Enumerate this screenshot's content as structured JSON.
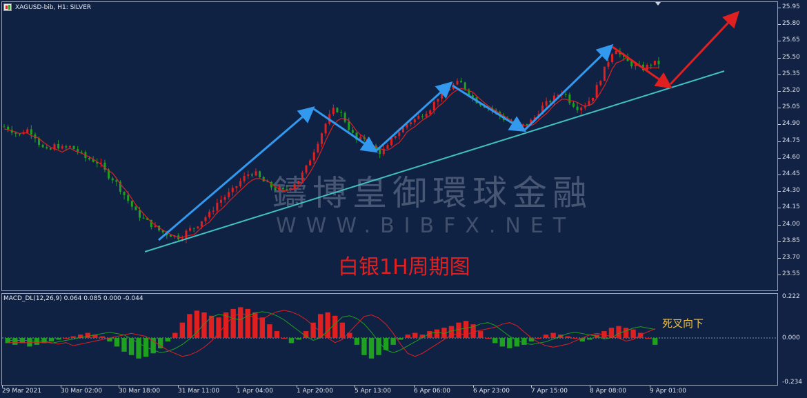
{
  "chart": {
    "symbol_line": "XAGUSD-bib, H1:  SILVER",
    "macd_line": "MACD_DL(12,26,9) 0.064 0.085 0.000 -0.044"
  },
  "price_axis": [
    "25.95",
    "25.80",
    "25.65",
    "25.50",
    "25.35",
    "25.20",
    "25.05",
    "24.90",
    "24.75",
    "24.60",
    "24.45",
    "24.30",
    "24.15",
    "24.00",
    "23.85",
    "23.70",
    "23.55"
  ],
  "macd_axis": {
    "top": "0.222",
    "zero": "0.000",
    "bottom": "-0.234"
  },
  "time_axis": [
    "29 Mar 2021",
    "30 Mar 02:00",
    "30 Mar 18:00",
    "31 Mar 11:00",
    "1 Apr 04:00",
    "1 Apr 20:00",
    "5 Apr 13:00",
    "6 Apr 06:00",
    "6 Apr 23:00",
    "7 Apr 15:00",
    "8 Apr 08:00",
    "9 Apr 01:00"
  ],
  "watermark": {
    "chinese": "鑄博皇御環球金融",
    "url": "WWW.BIBFX.NET"
  },
  "annotations": {
    "title": "白银1H周期图",
    "macd_note": "死叉向下"
  },
  "colors": {
    "background": "#112244",
    "bull": "#e02020",
    "bear": "#20a020",
    "trendline": "#40c0c0",
    "arrow_blue": "#3399ee",
    "arrow_red": "#e02020",
    "ma": "#e02020",
    "macd_signal": "#20a020",
    "macd_main": "#e02020"
  },
  "chart_data": {
    "type": "candlestick",
    "symbol": "XAGUSD",
    "timeframe": "H1",
    "ylim": [
      23.47,
      26.0
    ],
    "price_path": [
      24.88,
      24.85,
      24.8,
      24.86,
      24.82,
      24.7,
      24.65,
      24.72,
      24.68,
      24.7,
      24.66,
      24.6,
      24.58,
      24.55,
      24.45,
      24.4,
      24.3,
      24.2,
      24.1,
      24.05,
      24.0,
      23.95,
      23.92,
      23.9,
      23.88,
      23.95,
      23.98,
      24.05,
      24.1,
      24.2,
      24.25,
      24.3,
      24.38,
      24.45,
      24.47,
      24.4,
      24.35,
      24.32,
      24.3,
      24.35,
      24.4,
      24.5,
      24.65,
      24.8,
      24.95,
      25.05,
      24.98,
      24.85,
      24.75,
      24.78,
      24.7,
      24.65,
      24.68,
      24.8,
      24.85,
      24.92,
      24.95,
      25.0,
      25.05,
      25.15,
      25.2,
      25.25,
      25.28,
      25.2,
      25.12,
      25.08,
      25.05,
      25.0,
      24.95,
      24.92,
      24.88,
      24.9,
      24.95,
      25.05,
      25.1,
      25.15,
      25.2,
      25.1,
      25.05,
      25.08,
      25.15,
      25.3,
      25.45,
      25.6,
      25.5,
      25.45,
      25.42,
      25.4,
      25.45,
      25.45
    ],
    "macd_histogram": [
      -0.03,
      -0.04,
      -0.03,
      -0.05,
      -0.04,
      -0.03,
      -0.02,
      -0.01,
      0.0,
      0.01,
      0.02,
      0.03,
      0.02,
      0.01,
      -0.02,
      -0.05,
      -0.08,
      -0.1,
      -0.12,
      -0.11,
      -0.09,
      -0.06,
      -0.02,
      0.03,
      0.09,
      0.14,
      0.16,
      0.15,
      0.13,
      0.12,
      0.15,
      0.17,
      0.18,
      0.17,
      0.15,
      0.12,
      0.08,
      0.04,
      0.0,
      -0.03,
      -0.01,
      0.04,
      0.09,
      0.14,
      0.15,
      0.13,
      0.09,
      0.03,
      -0.04,
      -0.1,
      -0.12,
      -0.1,
      -0.07,
      -0.04,
      -0.01,
      0.02,
      0.03,
      0.02,
      0.04,
      0.05,
      0.06,
      0.07,
      0.09,
      0.1,
      0.08,
      0.04,
      0.0,
      -0.03,
      -0.05,
      -0.06,
      -0.05,
      -0.04,
      -0.02,
      0.0,
      0.02,
      0.03,
      0.02,
      0.01,
      0.0,
      -0.02,
      -0.01,
      0.02,
      0.04,
      0.06,
      0.07,
      0.06,
      0.05,
      0.03,
      0.0,
      -0.04
    ]
  }
}
